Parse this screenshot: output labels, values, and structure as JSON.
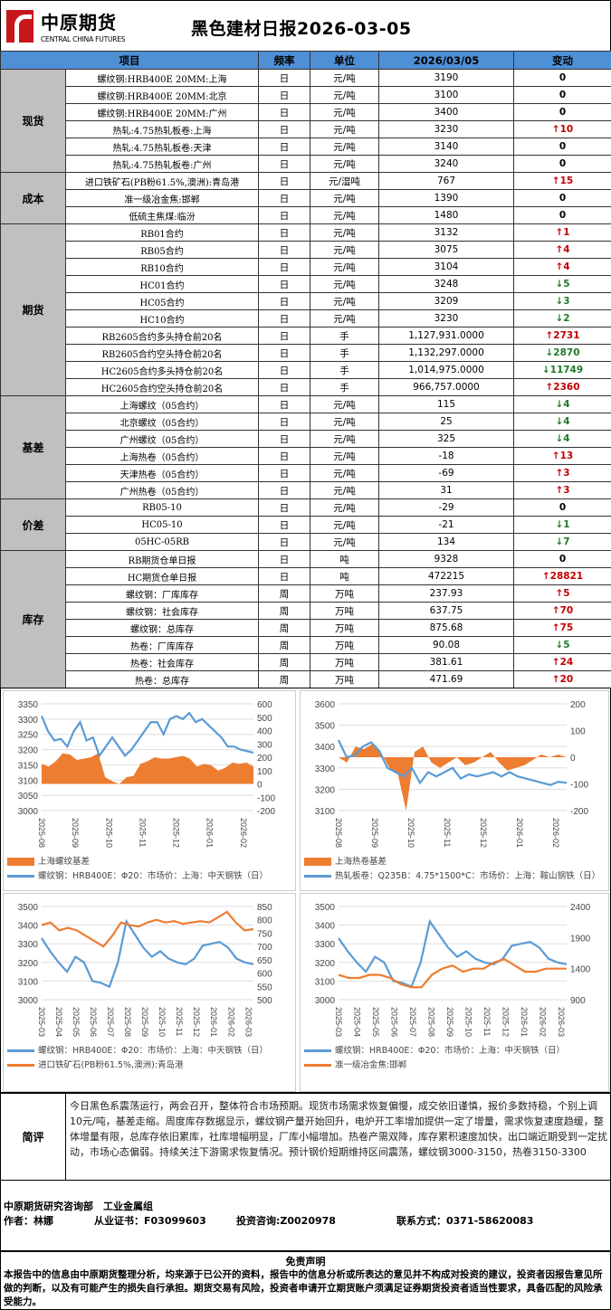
{
  "header": {
    "logo_cn": "中原期货",
    "logo_en": "CENTRAL CHINA FUTURES",
    "title": "黑色建材日报2026-03-05",
    "brand_color": "#c8161d"
  },
  "table": {
    "columns": [
      "项目",
      "频率",
      "单位",
      "2026/03/05",
      "变动"
    ],
    "header_color": "#4f8fd6",
    "groups": [
      {
        "category": "现货",
        "rows": [
          [
            "螺纹钢:HRB400E 20MM:上海",
            "日",
            "元/吨",
            "3190",
            "flat",
            "0"
          ],
          [
            "螺纹钢:HRB400E 20MM:北京",
            "日",
            "元/吨",
            "3100",
            "flat",
            "0"
          ],
          [
            "螺纹钢:HRB400E 20MM:广州",
            "日",
            "元/吨",
            "3400",
            "flat",
            "0"
          ],
          [
            "热轧:4.75热轧板卷:上海",
            "日",
            "元/吨",
            "3230",
            "up",
            "10"
          ],
          [
            "热轧:4.75热轧板卷:天津",
            "日",
            "元/吨",
            "3140",
            "flat",
            "0"
          ],
          [
            "热轧:4.75热轧板卷:广州",
            "日",
            "元/吨",
            "3240",
            "flat",
            "0"
          ]
        ]
      },
      {
        "category": "成本",
        "rows": [
          [
            "进口铁矿石(PB粉61.5%,澳洲):青岛港",
            "日",
            "元/湿吨",
            "767",
            "up",
            "15"
          ],
          [
            "准一级冶金焦:邯郸",
            "日",
            "元/吨",
            "1390",
            "flat",
            "0"
          ],
          [
            "低硫主焦煤:临汾",
            "日",
            "元/吨",
            "1480",
            "flat",
            "0"
          ]
        ]
      },
      {
        "category": "期货",
        "rows": [
          [
            "RB01合约",
            "日",
            "元/吨",
            "3132",
            "up",
            "1"
          ],
          [
            "RB05合约",
            "日",
            "元/吨",
            "3075",
            "up",
            "4"
          ],
          [
            "RB10合约",
            "日",
            "元/吨",
            "3104",
            "up",
            "4"
          ],
          [
            "HC01合约",
            "日",
            "元/吨",
            "3248",
            "down",
            "5"
          ],
          [
            "HC05合约",
            "日",
            "元/吨",
            "3209",
            "down",
            "3"
          ],
          [
            "HC10合约",
            "日",
            "元/吨",
            "3230",
            "down",
            "2"
          ],
          [
            "RB2605合约多头持仓前20名",
            "日",
            "手",
            "1,127,931.0000",
            "up",
            "2731"
          ],
          [
            "RB2605合约空头持仓前20名",
            "日",
            "手",
            "1,132,297.0000",
            "down",
            "2870"
          ],
          [
            "HC2605合约多头持仓前20名",
            "日",
            "手",
            "1,014,975.0000",
            "down",
            "11749"
          ],
          [
            "HC2605合约空头持仓前20名",
            "日",
            "手",
            "966,757.0000",
            "up",
            "2360"
          ]
        ]
      },
      {
        "category": "基差",
        "rows": [
          [
            "上海螺纹（05合约）",
            "日",
            "元/吨",
            "115",
            "down",
            "4"
          ],
          [
            "北京螺纹（05合约）",
            "日",
            "元/吨",
            "25",
            "down",
            "4"
          ],
          [
            "广州螺纹（05合约）",
            "日",
            "元/吨",
            "325",
            "down",
            "4"
          ],
          [
            "上海热卷（05合约）",
            "日",
            "元/吨",
            "-18",
            "up",
            "13"
          ],
          [
            "天津热卷（05合约）",
            "日",
            "元/吨",
            "-69",
            "up",
            "3"
          ],
          [
            "广州热卷（05合约）",
            "日",
            "元/吨",
            "31",
            "up",
            "3"
          ]
        ]
      },
      {
        "category": "价差",
        "rows": [
          [
            "RB05-10",
            "日",
            "元/吨",
            "-29",
            "flat",
            "0"
          ],
          [
            "HC05-10",
            "日",
            "元/吨",
            "-21",
            "down",
            "1"
          ],
          [
            "05HC-05RB",
            "日",
            "元/吨",
            "134",
            "down",
            "7"
          ]
        ]
      },
      {
        "category": "库存",
        "rows": [
          [
            "RB期货仓单日报",
            "日",
            "吨",
            "9328",
            "flat",
            "0"
          ],
          [
            "HC期货仓单日报",
            "日",
            "吨",
            "472215",
            "up",
            "28821"
          ],
          [
            "螺纹钢：厂库库存",
            "周",
            "万吨",
            "237.93",
            "up",
            "5"
          ],
          [
            "螺纹钢：社会库存",
            "周",
            "万吨",
            "637.75",
            "up",
            "70"
          ],
          [
            "螺纹钢：总库存",
            "周",
            "万吨",
            "875.68",
            "up",
            "75"
          ],
          [
            "热卷：厂库库存",
            "周",
            "万吨",
            "90.08",
            "down",
            "5"
          ],
          [
            "热卷：社会库存",
            "周",
            "万吨",
            "381.61",
            "up",
            "24"
          ],
          [
            "热卷：总库存",
            "周",
            "万吨",
            "471.69",
            "up",
            "20"
          ]
        ]
      }
    ]
  },
  "chart_data": [
    {
      "type": "line",
      "x_ticks": [
        "2025-08",
        "2025-09",
        "2025-10",
        "2025-11",
        "2025-12",
        "2026-01",
        "2026-02"
      ],
      "ylim": [
        3000,
        3350
      ],
      "yticks": [
        3000,
        3050,
        3100,
        3150,
        3200,
        3250,
        3300,
        3350
      ],
      "y2lim": [
        -200,
        600
      ],
      "y2ticks": [
        -200,
        -100,
        0,
        100,
        200,
        300,
        400,
        500,
        600
      ],
      "grid": true,
      "legend": "bottom",
      "series": [
        {
          "name": "上海螺纹基差",
          "kind": "area",
          "axis": "right",
          "color": "#ed7d31",
          "values": [
            150,
            130,
            170,
            230,
            220,
            180,
            190,
            200,
            230,
            50,
            20,
            0,
            50,
            60,
            150,
            170,
            200,
            190,
            190,
            200,
            210,
            190,
            130,
            150,
            140,
            100,
            120,
            160,
            150,
            160,
            130
          ]
        },
        {
          "name": "螺纹钢：HRB400E：Φ20：市场价：上海：中天钢铁（日）",
          "kind": "line",
          "axis": "left",
          "color": "#5b9bd5",
          "values": [
            3310,
            3260,
            3230,
            3235,
            3210,
            3260,
            3290,
            3230,
            3240,
            3180,
            3210,
            3240,
            3210,
            3180,
            3200,
            3230,
            3260,
            3290,
            3290,
            3250,
            3300,
            3310,
            3300,
            3320,
            3290,
            3300,
            3280,
            3260,
            3240,
            3210,
            3210,
            3200,
            3195,
            3190
          ]
        }
      ]
    },
    {
      "type": "line",
      "x_ticks": [
        "2025-08",
        "2025-09",
        "2025-10",
        "2025-11",
        "2025-12",
        "2026-01",
        "2026-02"
      ],
      "ylim": [
        3100,
        3600
      ],
      "yticks": [
        3100,
        3200,
        3300,
        3400,
        3500,
        3600
      ],
      "y2lim": [
        -200,
        200
      ],
      "y2ticks": [
        -200,
        -100,
        0,
        100,
        200
      ],
      "grid": true,
      "legend": "bottom",
      "series": [
        {
          "name": "上海热卷基差",
          "kind": "area",
          "axis": "right",
          "color": "#ed7d31",
          "values": [
            0,
            -20,
            40,
            30,
            50,
            20,
            -40,
            -60,
            -200,
            20,
            40,
            -20,
            -40,
            -20,
            0,
            -30,
            -20,
            0,
            20,
            -20,
            -50,
            -40,
            -30,
            -10,
            10,
            0,
            10,
            0
          ]
        },
        {
          "name": "热轧板卷：Q235B：4.75*1500*C：市场价：上海：鞍山钢铁（日）",
          "kind": "line",
          "axis": "left",
          "color": "#5b9bd5",
          "values": [
            3430,
            3350,
            3360,
            3400,
            3420,
            3380,
            3300,
            3280,
            3260,
            3300,
            3230,
            3280,
            3260,
            3280,
            3300,
            3250,
            3270,
            3260,
            3270,
            3280,
            3260,
            3280,
            3260,
            3250,
            3240,
            3230,
            3220,
            3235,
            3230
          ]
        }
      ]
    },
    {
      "type": "line",
      "x_ticks": [
        "2025-03",
        "2025-04",
        "2025-05",
        "2025-06",
        "2025-07",
        "2025-08",
        "2025-09",
        "2025-10",
        "2025-11",
        "2025-12",
        "2026-01",
        "2026-02",
        "2026-03"
      ],
      "ylim": [
        3000,
        3500
      ],
      "yticks": [
        3000,
        3100,
        3200,
        3300,
        3400,
        3500
      ],
      "y2lim": [
        500,
        850
      ],
      "y2ticks": [
        500,
        550,
        600,
        650,
        700,
        750,
        800,
        850
      ],
      "grid": true,
      "legend": "bottom",
      "series": [
        {
          "name": "螺纹钢：HRB400E：Φ20：市场价：上海：中天钢铁（日）",
          "kind": "line",
          "axis": "left",
          "color": "#5b9bd5",
          "values": [
            3330,
            3260,
            3200,
            3150,
            3230,
            3200,
            3100,
            3090,
            3070,
            3200,
            3420,
            3350,
            3280,
            3230,
            3260,
            3220,
            3200,
            3190,
            3220,
            3290,
            3300,
            3310,
            3280,
            3220,
            3200,
            3190
          ]
        },
        {
          "name": "进口铁矿石(PB粉61.5%,澳洲):青岛港",
          "kind": "line",
          "axis": "right",
          "color": "#ed7d31",
          "values": [
            780,
            790,
            760,
            770,
            760,
            740,
            720,
            700,
            740,
            790,
            780,
            775,
            790,
            800,
            790,
            795,
            785,
            790,
            795,
            790,
            810,
            830,
            790,
            760,
            765
          ]
        }
      ]
    },
    {
      "type": "line",
      "x_ticks": [
        "2025-03",
        "2025-04",
        "2025-05",
        "2025-06",
        "2025-07",
        "2025-08",
        "2025-09",
        "2025-10",
        "2025-11",
        "2025-12",
        "2026-01",
        "2026-02",
        "2026-03"
      ],
      "ylim": [
        3000,
        3500
      ],
      "yticks": [
        3000,
        3100,
        3200,
        3300,
        3400,
        3500
      ],
      "y2lim": [
        900,
        2400
      ],
      "y2ticks": [
        900,
        1400,
        1900,
        2400
      ],
      "grid": true,
      "legend": "bottom",
      "series": [
        {
          "name": "螺纹钢：HRB400E：Φ20：市场价：上海：中天钢铁（日）",
          "kind": "line",
          "axis": "left",
          "color": "#5b9bd5",
          "values": [
            3330,
            3260,
            3200,
            3150,
            3230,
            3200,
            3100,
            3090,
            3070,
            3200,
            3420,
            3350,
            3280,
            3230,
            3260,
            3220,
            3200,
            3190,
            3220,
            3290,
            3300,
            3310,
            3280,
            3220,
            3200,
            3190
          ]
        },
        {
          "name": "准一级冶金焦:邯郸",
          "kind": "line",
          "axis": "right",
          "color": "#ed7d31",
          "values": [
            1300,
            1250,
            1250,
            1300,
            1300,
            1250,
            1150,
            1100,
            1100,
            1300,
            1400,
            1450,
            1350,
            1400,
            1400,
            1500,
            1550,
            1450,
            1350,
            1350,
            1400,
            1400,
            1400
          ]
        }
      ]
    }
  ],
  "comment": {
    "label": "简评",
    "text": "今日黑色系震荡运行，两会召开，整体符合市场预期。现货市场需求恢复偏慢，成交依旧谨慎，报价多数持稳，个别上调10元/吨，基差走缩。周度库存数据显示，螺纹钢产量开始回升，电炉开工率增加提供一定了增量，需求恢复速度趋缓，整体增量有限，总库存依旧累库，社库增幅明显，厂库小幅增加。热卷产需双降，库存累积速度加快，出口端近期受到一定扰动，市场心态偏弱。持续关注下游需求恢复情况。预计钢价短期维持区间震荡，螺纹钢3000-3150，热卷3150-3300"
  },
  "footer": {
    "dept": "中原期货研究咨询部　工业金属组",
    "author": "作者：林娜",
    "cert": "从业证书：F03099603",
    "consult": "投资咨询:Z0020978",
    "contact": "联系方式：0371-58620083"
  },
  "disclaimer": {
    "title": "免责声明",
    "text": "本报告中的信息由中原期货整理分析，均来源于已公开的资料，报告中的信息分析或所表达的意见并不构成对投资的建议，投资者因报告意见所做的判断，以及有可能产生的损失自行承担。期货交易有风险，投资者申请开立期货账户须满足证券期货投资者适当性要求，具备匹配的风险承受能力。"
  }
}
